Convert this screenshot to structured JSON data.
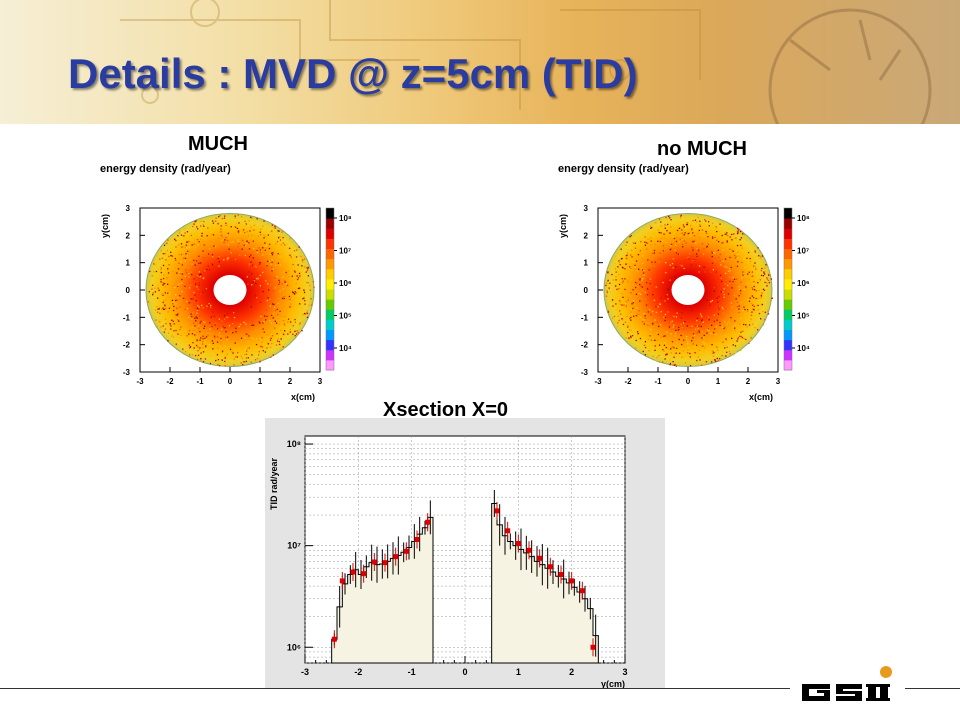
{
  "slide": {
    "title": "Details : MVD @ z=5cm (TID)",
    "label_much": "MUCH",
    "label_no_much": "no MUCH",
    "label_xsection": "Xsection X=0",
    "logo": "GSI"
  },
  "chart_data": [
    {
      "type": "heatmap",
      "name": "much",
      "title": "energy density (rad/year)",
      "xlabel": "x(cm)",
      "ylabel": "y(cm)",
      "xlim": [
        -3,
        3
      ],
      "ylim": [
        -3,
        3
      ],
      "xticks": [
        "-3",
        "-2",
        "-1",
        "0",
        "1",
        "2",
        "3"
      ],
      "yticks": [
        "-3",
        "-2",
        "-1",
        "0",
        "1",
        "2",
        "3"
      ],
      "inner_radius_cm": 0.55,
      "outer_radius_cm": 2.8,
      "colorbar_ticks": [
        "10⁴",
        "10⁵",
        "10⁶",
        "10⁷",
        "10⁸"
      ],
      "colors": [
        "#ff99ff",
        "#cc33ff",
        "#3333ff",
        "#0099ff",
        "#00cccc",
        "#00cc66",
        "#66cc00",
        "#ccdd00",
        "#ffee00",
        "#ffcc00",
        "#ff9900",
        "#ff6600",
        "#ff3300",
        "#dd0000",
        "#990000",
        "#000000"
      ]
    },
    {
      "type": "heatmap",
      "name": "no-much",
      "title": "energy density (rad/year)",
      "xlabel": "x(cm)",
      "ylabel": "y(cm)",
      "xlim": [
        -3,
        3
      ],
      "ylim": [
        -3,
        3
      ],
      "xticks": [
        "-3",
        "-2",
        "-1",
        "0",
        "1",
        "2",
        "3"
      ],
      "yticks": [
        "-3",
        "-2",
        "-1",
        "0",
        "1",
        "2",
        "3"
      ],
      "inner_radius_cm": 0.55,
      "outer_radius_cm": 2.8,
      "colorbar_ticks": [
        "10⁴",
        "10⁵",
        "10⁶",
        "10⁷",
        "10⁸"
      ],
      "colors": [
        "#ff99ff",
        "#cc33ff",
        "#3333ff",
        "#0099ff",
        "#00cccc",
        "#00cc66",
        "#66cc00",
        "#ccdd00",
        "#ffee00",
        "#ffcc00",
        "#ff9900",
        "#ff6600",
        "#ff3300",
        "#dd0000",
        "#990000",
        "#000000"
      ]
    },
    {
      "type": "line",
      "name": "xsection",
      "xlabel": "y(cm)",
      "ylabel": "TID rad/year",
      "xlim": [
        -3,
        3
      ],
      "ylim": [
        700000,
        120000000
      ],
      "log_y": true,
      "xticks": [
        "-3",
        "-2",
        "-1",
        "0",
        "1",
        "2",
        "3"
      ],
      "yticks": [
        {
          "value": 1000000,
          "label": "10⁶"
        },
        {
          "value": 10000000,
          "label": "10⁷"
        },
        {
          "value": 100000000,
          "label": "10⁸"
        }
      ],
      "series": [
        {
          "color": "#000000",
          "style": "histogram",
          "x": [
            -2.45,
            -2.35,
            -2.25,
            -2.15,
            -2.05,
            -1.95,
            -1.85,
            -1.75,
            -1.65,
            -1.55,
            -1.45,
            -1.35,
            -1.25,
            -1.15,
            -1.05,
            -0.95,
            -0.85,
            -0.75,
            -0.65,
            0.55,
            0.65,
            0.75,
            0.85,
            0.95,
            1.05,
            1.15,
            1.25,
            1.35,
            1.45,
            1.55,
            1.65,
            1.75,
            1.85,
            1.95,
            2.05,
            2.15,
            2.25,
            2.35,
            2.45
          ],
          "y": [
            1200000,
            2500000,
            4200000,
            5200000,
            5800000,
            5200000,
            6200000,
            6800000,
            6500000,
            6600000,
            7000000,
            7500000,
            8000000,
            8600000,
            9600000,
            11000000,
            13000000,
            15000000,
            19000000,
            26000000,
            16000000,
            12500000,
            11000000,
            10000000,
            9200000,
            8500000,
            7800000,
            7000000,
            6500000,
            6000000,
            5500000,
            5000000,
            4700000,
            4300000,
            3900000,
            3500000,
            3000000,
            2400000,
            1300000
          ]
        },
        {
          "color": "#dd0000",
          "style": "markers",
          "x": [
            -2.45,
            -2.3,
            -2.1,
            -1.9,
            -1.7,
            -1.5,
            -1.3,
            -1.1,
            -0.9,
            -0.7,
            0.6,
            0.8,
            1.0,
            1.2,
            1.4,
            1.6,
            1.8,
            2.0,
            2.2,
            2.4
          ],
          "y": [
            1200000,
            4500000,
            5500000,
            5300000,
            6900000,
            6800000,
            7800000,
            8800000,
            11500000,
            17000000,
            22000000,
            14000000,
            10500000,
            9000000,
            7500000,
            6200000,
            5200000,
            4500000,
            3600000,
            1000000
          ]
        }
      ]
    }
  ]
}
